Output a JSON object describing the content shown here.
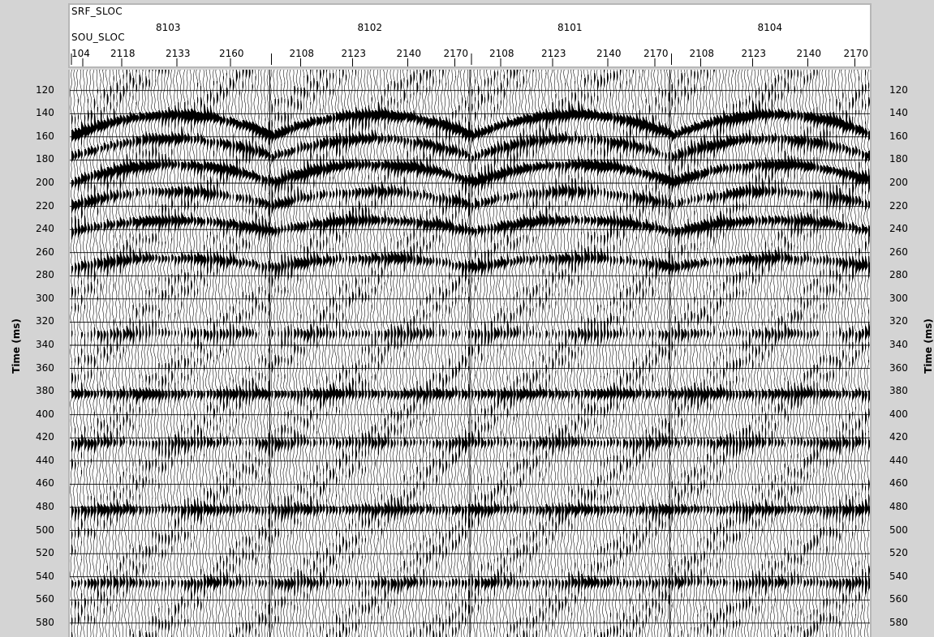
{
  "header": {
    "srf_key": "SRF_SLOC",
    "sou_key": "SOU_SLOC"
  },
  "axis": {
    "ylabel_left": "Time (ms)",
    "ylabel_right": "Time (ms)"
  },
  "chart_data": {
    "type": "seismic-wiggle",
    "title": "",
    "ylabel": "Time (ms)",
    "ylim": [
      102,
      592
    ],
    "y_ticks": [
      120,
      140,
      160,
      180,
      200,
      220,
      240,
      260,
      280,
      300,
      320,
      340,
      360,
      380,
      400,
      420,
      440,
      460,
      480,
      500,
      520,
      540,
      560,
      580
    ],
    "grid": true,
    "panels": [
      {
        "srf_sloc": "8103",
        "sou_sloc_ticks": [
          "104",
          "2118",
          "2133",
          "2160"
        ]
      },
      {
        "srf_sloc": "8102",
        "sou_sloc_ticks": [
          "2108",
          "2123",
          "2140",
          "2170"
        ]
      },
      {
        "srf_sloc": "8101",
        "sou_sloc_ticks": [
          "2108",
          "2123",
          "2140",
          "2170"
        ]
      },
      {
        "srf_sloc": "8104",
        "sou_sloc_ticks": [
          "2108",
          "2123",
          "2140",
          "2170"
        ]
      }
    ],
    "fill": "positive-black"
  }
}
